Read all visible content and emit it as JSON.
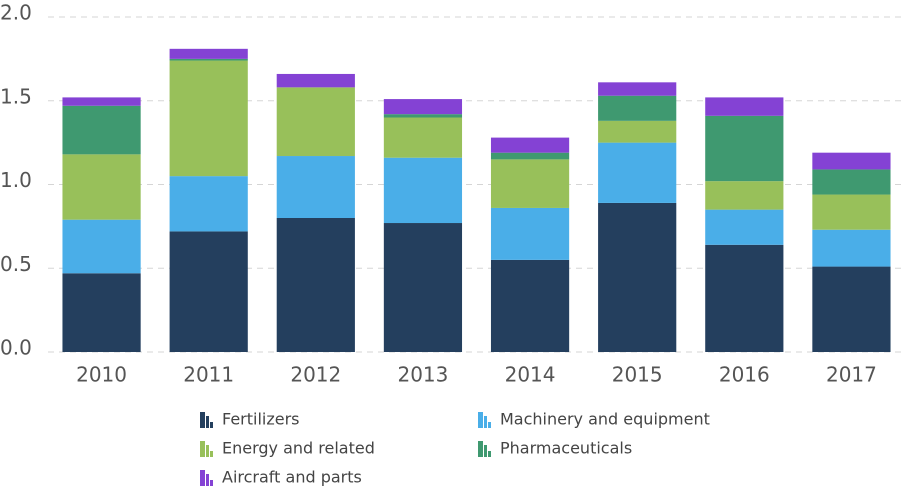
{
  "chart_data": {
    "type": "bar",
    "stacked": true,
    "categories": [
      "2010",
      "2011",
      "2012",
      "2013",
      "2014",
      "2015",
      "2016",
      "2017"
    ],
    "series": [
      {
        "name": "Fertilizers",
        "color": "#243f5e",
        "values": [
          0.47,
          0.72,
          0.8,
          0.77,
          0.55,
          0.89,
          0.64,
          0.51
        ]
      },
      {
        "name": "Machinery and equipment",
        "color": "#4aaee8",
        "values": [
          0.32,
          0.33,
          0.37,
          0.39,
          0.31,
          0.36,
          0.21,
          0.22
        ]
      },
      {
        "name": "Energy and related",
        "color": "#98c05a",
        "values": [
          0.39,
          0.69,
          0.41,
          0.24,
          0.29,
          0.13,
          0.17,
          0.21
        ]
      },
      {
        "name": "Pharmaceuticals",
        "color": "#3f9970",
        "values": [
          0.29,
          0.01,
          0,
          0.02,
          0.04,
          0.15,
          0.39,
          0.15
        ]
      },
      {
        "name": "Aircraft and parts",
        "color": "#8442d4",
        "values": [
          0.05,
          0.06,
          0.08,
          0.09,
          0.09,
          0.08,
          0.11,
          0.1
        ]
      }
    ],
    "ylim": [
      0,
      2.0
    ],
    "yticks": [
      {
        "value": 0,
        "label": "0.0"
      },
      0.5,
      {
        "value": 1,
        "label": "1.0"
      },
      1.5,
      {
        "value": 2,
        "label": "2.0"
      }
    ],
    "grid": true,
    "legend": "bottom"
  }
}
